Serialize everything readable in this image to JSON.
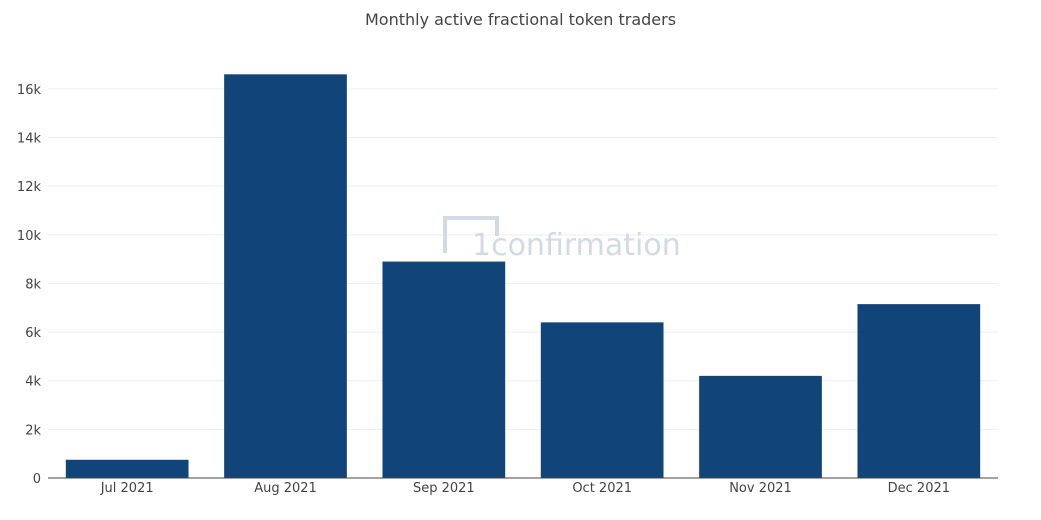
{
  "chart_data": {
    "type": "bar",
    "title": "Monthly active fractional token traders",
    "xlabel": "",
    "ylabel": "",
    "categories": [
      "Jul 2021",
      "Aug 2021",
      "Sep 2021",
      "Oct 2021",
      "Nov 2021",
      "Dec 2021"
    ],
    "values": [
      750,
      16600,
      8900,
      6400,
      4200,
      7150
    ],
    "ylim": [
      0,
      17600
    ],
    "yticks": [
      0,
      2000,
      4000,
      6000,
      8000,
      10000,
      12000,
      14000,
      16000
    ],
    "ytick_labels": [
      "0",
      "2k",
      "4k",
      "6k",
      "8k",
      "10k",
      "12k",
      "14k",
      "16k"
    ],
    "bar_color": "#114478",
    "grid": true,
    "legend": "none"
  },
  "watermark": {
    "text": "1confirmation",
    "color": "#d3dae3"
  }
}
